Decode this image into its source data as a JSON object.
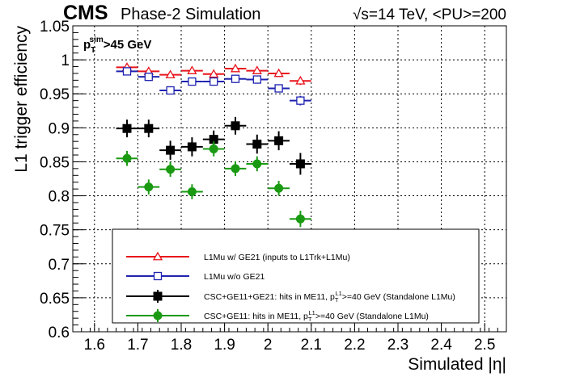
{
  "header": {
    "experiment": "CMS",
    "subtitle": "Phase-2 Simulation",
    "energy": "√s=14 TeV, <PU>=200"
  },
  "cut_label": {
    "main": "p",
    "sup": "sim",
    "sub": "T",
    "rest": ">45 GeV"
  },
  "colors": {
    "red": "#e8141c",
    "blue": "#1f23b0",
    "black": "#000000",
    "green": "#1a9a12"
  },
  "chart_data": {
    "type": "scatter",
    "xlabel": "Simulated |η|",
    "ylabel": "L1 trigger efficiency",
    "xlim": [
      1.55,
      2.55
    ],
    "ylim": [
      0.6,
      1.05
    ],
    "xticks": [
      "1.6",
      "1.7",
      "1.8",
      "1.9",
      "2",
      "2.1",
      "2.2",
      "2.3",
      "2.4",
      "2.5"
    ],
    "yticks": [
      "0.6",
      "0.65",
      "0.7",
      "0.75",
      "0.8",
      "0.85",
      "0.9",
      "0.95",
      "1",
      "1.05"
    ],
    "grid": true,
    "x": [
      1.675,
      1.725,
      1.775,
      1.825,
      1.875,
      1.925,
      1.975,
      2.025,
      2.075
    ],
    "x_half_width": 0.025,
    "series": [
      {
        "key": "red",
        "marker": "open-triangle",
        "values": [
          0.989,
          0.983,
          0.978,
          0.984,
          0.979,
          0.987,
          0.984,
          0.98,
          0.969
        ],
        "errors": [
          0.005,
          0.005,
          0.005,
          0.005,
          0.005,
          0.005,
          0.005,
          0.005,
          0.006
        ]
      },
      {
        "key": "blue",
        "marker": "open-square",
        "values": [
          0.983,
          0.975,
          0.955,
          0.968,
          0.968,
          0.972,
          0.971,
          0.958,
          0.94
        ],
        "errors": [
          0.006,
          0.006,
          0.006,
          0.006,
          0.006,
          0.006,
          0.006,
          0.006,
          0.007
        ]
      },
      {
        "key": "black",
        "marker": "filled-square",
        "values": [
          0.899,
          0.899,
          0.867,
          0.872,
          0.883,
          0.903,
          0.876,
          0.881,
          0.847
        ],
        "errors": [
          0.013,
          0.013,
          0.014,
          0.014,
          0.013,
          0.013,
          0.014,
          0.014,
          0.016
        ]
      },
      {
        "key": "green",
        "marker": "filled-circle",
        "values": [
          0.855,
          0.813,
          0.839,
          0.806,
          0.869,
          0.84,
          0.847,
          0.811,
          0.766
        ],
        "errors": [
          0.011,
          0.011,
          0.011,
          0.011,
          0.011,
          0.011,
          0.011,
          0.011,
          0.012
        ]
      }
    ],
    "legend": {
      "placement": "bottom-center",
      "entries": [
        {
          "key": "red",
          "text": "L1Mu w/ GE21 (inputs to L1Trk+L1Mu)",
          "sup_text": "",
          "tail": ""
        },
        {
          "key": "blue",
          "text": "L1Mu w/o GE21",
          "sup_text": "",
          "tail": ""
        },
        {
          "key": "black",
          "text": "CSC+GE11+GE21: hits in ME11, p",
          "sub_text": "T",
          "sup_text": "L1",
          "tail": ">=40 GeV (Standalone L1Mu)"
        },
        {
          "key": "green",
          "text": "CSC+GE11: hits in ME11, p",
          "sub_text": "T",
          "sup_text": "L1",
          "tail": ">=40 GeV (Standalone L1Mu)"
        }
      ]
    }
  }
}
